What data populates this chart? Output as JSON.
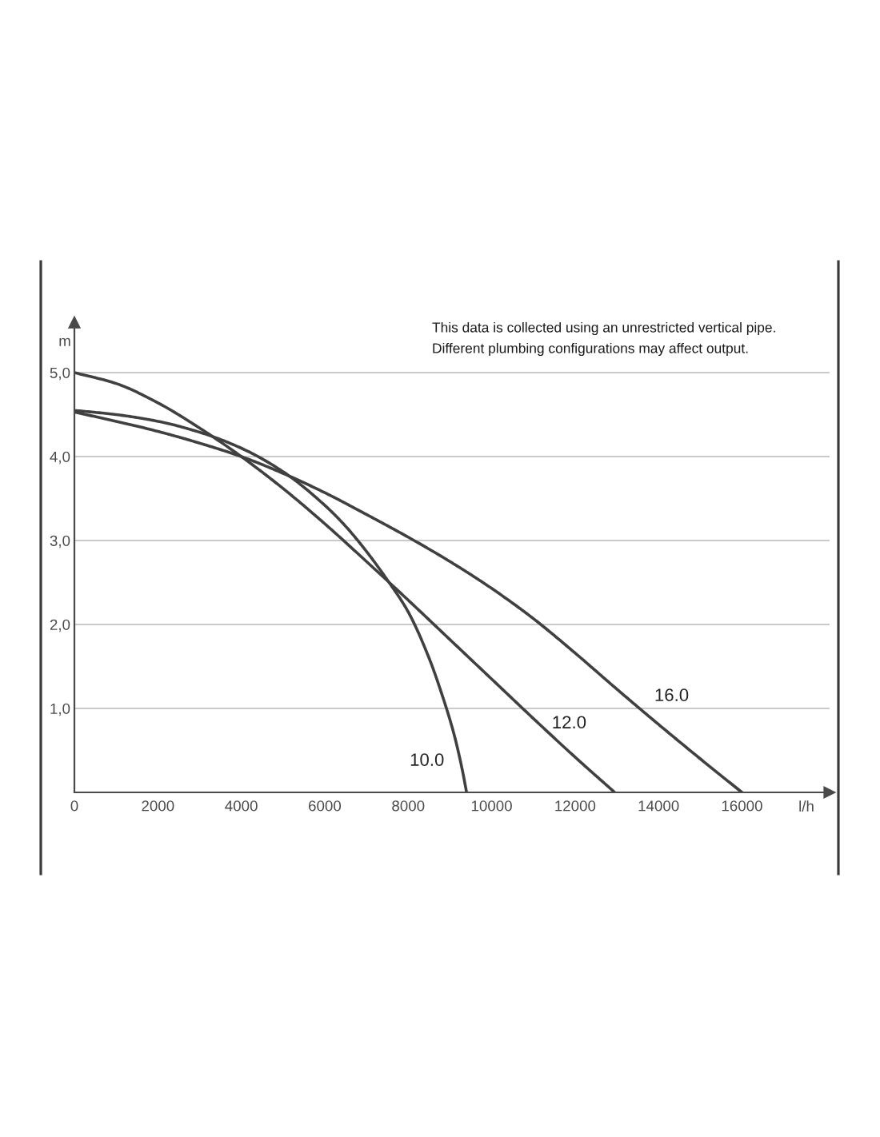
{
  "chart_data": {
    "type": "line",
    "xlabel": "l/h",
    "ylabel": "m",
    "annotations": [
      "This data is collected using an unrestricted vertical pipe.",
      "Different plumbing configurations may affect output."
    ],
    "series": [
      {
        "name": "10.0",
        "color": "#404040",
        "x": [
          0,
          1000,
          2000,
          3000,
          4000,
          5000,
          6000,
          6500,
          7000,
          7500,
          8000,
          8500,
          8800,
          9100,
          9300,
          9400
        ],
        "values": [
          4.55,
          4.5,
          4.42,
          4.29,
          4.1,
          3.82,
          3.42,
          3.17,
          2.87,
          2.53,
          2.15,
          1.6,
          1.18,
          0.69,
          0.26,
          0
        ]
      },
      {
        "name": "12.0",
        "color": "#404040",
        "x": [
          0,
          1000,
          2000,
          3000,
          4000,
          5000,
          6000,
          7000,
          8000,
          9000,
          10000,
          11000,
          12000,
          12950
        ],
        "values": [
          5.0,
          4.87,
          4.64,
          4.34,
          4.0,
          3.62,
          3.2,
          2.75,
          2.29,
          1.82,
          1.35,
          0.88,
          0.42,
          0
        ]
      },
      {
        "name": "16.0",
        "color": "#404040",
        "x": [
          0,
          1000,
          2000,
          3000,
          4000,
          5000,
          6000,
          7000,
          8000,
          9000,
          10000,
          11000,
          12000,
          13000,
          14000,
          15000,
          16000
        ],
        "values": [
          4.53,
          4.42,
          4.3,
          4.16,
          4.0,
          3.8,
          3.57,
          3.31,
          3.04,
          2.75,
          2.43,
          2.07,
          1.66,
          1.23,
          0.81,
          0.4,
          0
        ]
      }
    ],
    "xlim": [
      0,
      18100
    ],
    "ylim": [
      0,
      5.6
    ],
    "xticks": [
      0,
      2000,
      4000,
      6000,
      8000,
      10000,
      12000,
      14000,
      16000
    ],
    "yticks": [
      {
        "value": 1,
        "label": "1,0"
      },
      {
        "value": 2,
        "label": "2,0"
      },
      {
        "value": 3,
        "label": "3,0"
      },
      {
        "value": 4,
        "label": "4,0"
      },
      {
        "value": 5,
        "label": "5,0"
      }
    ],
    "grid": "y"
  }
}
